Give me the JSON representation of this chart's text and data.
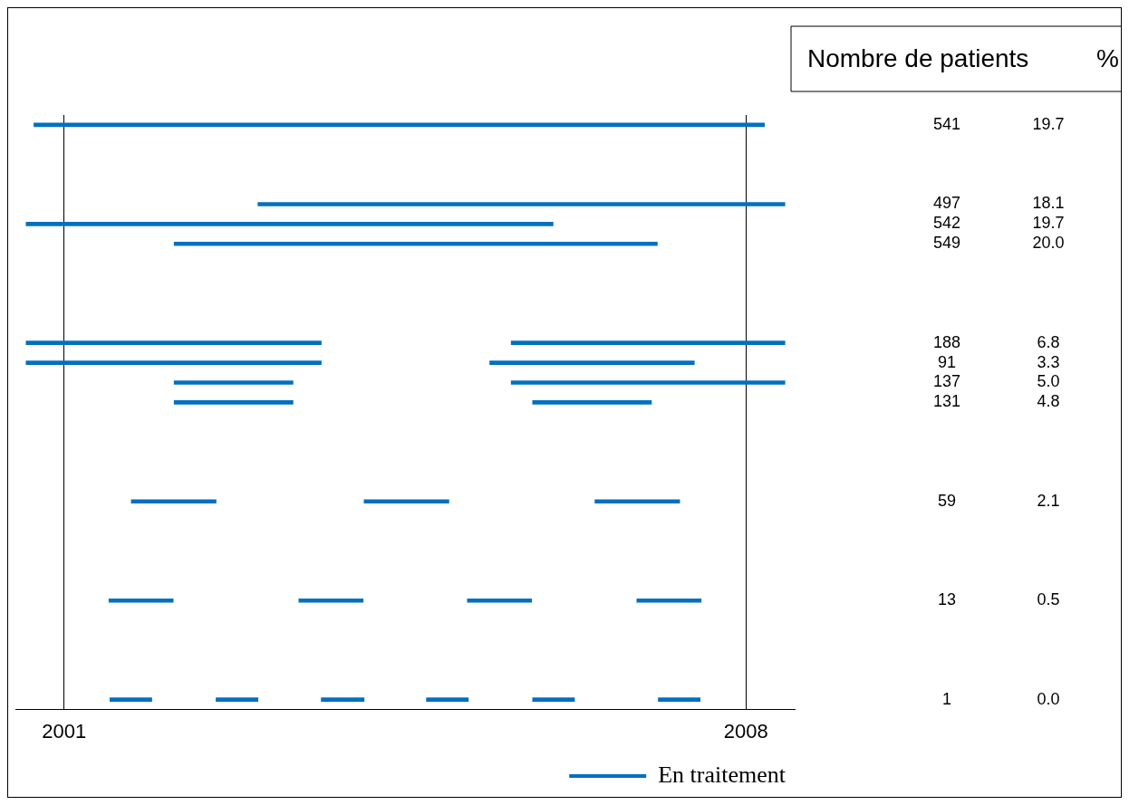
{
  "chart_data": {
    "type": "bar",
    "orientation": "horizontal",
    "categories": [
      null,
      null,
      null,
      null,
      null,
      null,
      null,
      null,
      null,
      null,
      null,
      null,
      null,
      null,
      null,
      null,
      null,
      null,
      null,
      null,
      null,
      null,
      null,
      null,
      null,
      null,
      null,
      null,
      null,
      null
    ],
    "xlim": [
      2000.5,
      2008.5
    ],
    "xticks": [
      2001,
      2008
    ],
    "grid": "x",
    "tick_labels": "x",
    "legend": "bottom right",
    "series": [
      {
        "name": "En traitement",
        "color": "#0070c0",
        "values": [
          7.5,
          null,
          null,
          null,
          5.41,
          5.41,
          4.96,
          null,
          null,
          null,
          null,
          3.03,
          3.03,
          1.22,
          1.22,
          null,
          null,
          null,
          null,
          0.87,
          null,
          null,
          null,
          null,
          0.66,
          null,
          null,
          null,
          null,
          0.43
        ],
        "base": [
          2000.69,
          null,
          null,
          null,
          2002.99,
          2000.61,
          2002.13,
          null,
          null,
          null,
          null,
          2000.61,
          2000.61,
          2002.13,
          2002.13,
          null,
          null,
          null,
          null,
          2001.69,
          null,
          null,
          null,
          null,
          2001.46,
          null,
          null,
          null,
          null,
          2001.47
        ]
      },
      {
        "color": "#0070c0",
        "values": [
          null,
          null,
          null,
          null,
          null,
          null,
          null,
          null,
          null,
          null,
          null,
          2.81,
          2.1,
          2.81,
          1.22,
          null,
          null,
          null,
          null,
          0.87,
          null,
          null,
          null,
          null,
          0.66,
          null,
          null,
          null,
          null,
          0.43
        ],
        "base": [
          null,
          null,
          null,
          null,
          null,
          null,
          null,
          null,
          null,
          null,
          null,
          2005.59,
          2005.37,
          2005.59,
          2005.81,
          null,
          null,
          null,
          null,
          2004.08,
          null,
          null,
          null,
          null,
          2003.41,
          null,
          null,
          null,
          null,
          2002.56
        ]
      },
      {
        "color": "#0070c0",
        "values": [
          null,
          null,
          null,
          null,
          null,
          null,
          null,
          null,
          null,
          null,
          null,
          null,
          null,
          null,
          null,
          null,
          null,
          null,
          null,
          0.87,
          null,
          null,
          null,
          null,
          0.66,
          null,
          null,
          null,
          null,
          0.44
        ],
        "base": [
          null,
          null,
          null,
          null,
          null,
          null,
          null,
          null,
          null,
          null,
          null,
          null,
          null,
          null,
          null,
          null,
          null,
          null,
          null,
          2006.45,
          null,
          null,
          null,
          null,
          2005.14,
          null,
          null,
          null,
          null,
          2003.64
        ]
      },
      {
        "color": "#0070c0",
        "values": [
          null,
          null,
          null,
          null,
          null,
          null,
          null,
          null,
          null,
          null,
          null,
          null,
          null,
          null,
          null,
          null,
          null,
          null,
          null,
          null,
          null,
          null,
          null,
          null,
          0.66,
          null,
          null,
          null,
          null,
          0.43
        ],
        "base": [
          null,
          null,
          null,
          null,
          null,
          null,
          null,
          null,
          null,
          null,
          null,
          null,
          null,
          null,
          null,
          null,
          null,
          null,
          null,
          null,
          null,
          null,
          null,
          null,
          2006.88,
          null,
          null,
          null,
          null,
          2004.72
        ]
      },
      {
        "color": "#0070c0",
        "values": [
          null,
          null,
          null,
          null,
          null,
          null,
          null,
          null,
          null,
          null,
          null,
          null,
          null,
          null,
          null,
          null,
          null,
          null,
          null,
          null,
          null,
          null,
          null,
          null,
          null,
          null,
          null,
          null,
          null,
          0.43
        ],
        "base": [
          null,
          null,
          null,
          null,
          null,
          null,
          null,
          null,
          null,
          null,
          null,
          null,
          null,
          null,
          null,
          null,
          null,
          null,
          null,
          null,
          null,
          null,
          null,
          null,
          null,
          null,
          null,
          null,
          null,
          2005.81
        ]
      },
      {
        "color": "#0070c0",
        "values": [
          null,
          null,
          null,
          null,
          null,
          null,
          null,
          null,
          null,
          null,
          null,
          null,
          null,
          null,
          null,
          null,
          null,
          null,
          null,
          null,
          null,
          null,
          null,
          null,
          null,
          null,
          null,
          null,
          null,
          0.43
        ],
        "base": [
          null,
          null,
          null,
          null,
          null,
          null,
          null,
          null,
          null,
          null,
          null,
          null,
          null,
          null,
          null,
          null,
          null,
          null,
          null,
          null,
          null,
          null,
          null,
          null,
          null,
          null,
          null,
          null,
          null,
          2007.1
        ]
      }
    ],
    "annotations": [
      "Nombre de patients",
      "%",
      "541",
      "19.7",
      "497",
      "18.1",
      "542",
      "19.7",
      "549",
      "20.0",
      "188",
      "6.8",
      "91",
      "3.3",
      "137",
      "5.0",
      "131",
      "4.8",
      "59",
      "2.1",
      "13",
      "0.5",
      "1",
      "0.0"
    ]
  }
}
